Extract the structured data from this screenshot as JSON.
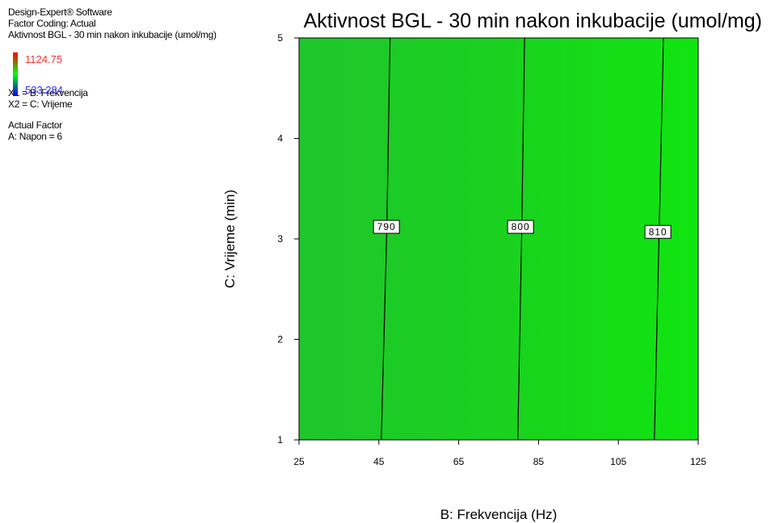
{
  "info": {
    "software": "Design-Expert® Software",
    "coding": "Factor Coding: Actual",
    "response": "Aktivnost BGL - 30 min nakon inkubacije (umol/mg)",
    "color_max": "1124.75",
    "color_min": "533.284",
    "x1": "X1 = B: Frekvencija",
    "x2": "X2 = C: Vrijeme",
    "actual_factor_heading": "Actual Factor",
    "actual_factor": "A: Napon = 6"
  },
  "colors": {
    "gradient_high": "#ff0000",
    "gradient_mid": "#00ff00",
    "gradient_low": "#0000ff",
    "plot_fill": "#22cc22"
  },
  "chart_data": {
    "type": "contour",
    "title": "Aktivnost BGL - 30 min nakon inkubacije (umol/mg)",
    "xlabel": "B: Frekvencija (Hz)",
    "ylabel": "C: Vrijeme (min)",
    "xlim": [
      25,
      125
    ],
    "ylim": [
      1,
      5
    ],
    "xticks": [
      25,
      45,
      65,
      85,
      105,
      125
    ],
    "yticks": [
      1,
      2,
      3,
      4,
      5
    ],
    "contours": [
      {
        "level": "790",
        "points": [
          [
            45.6,
            1
          ],
          [
            47.0,
            3.12
          ],
          [
            47.8,
            5
          ]
        ],
        "label_at": [
          46.9,
          3.12
        ]
      },
      {
        "level": "800",
        "points": [
          [
            79.8,
            1
          ],
          [
            80.8,
            3.12
          ],
          [
            81.5,
            5
          ]
        ],
        "label_at": [
          80.5,
          3.12
        ]
      },
      {
        "level": "810",
        "points": [
          [
            114.0,
            1
          ],
          [
            115.2,
            3.07
          ],
          [
            116.3,
            5
          ]
        ],
        "label_at": [
          114.9,
          3.07
        ]
      }
    ]
  }
}
